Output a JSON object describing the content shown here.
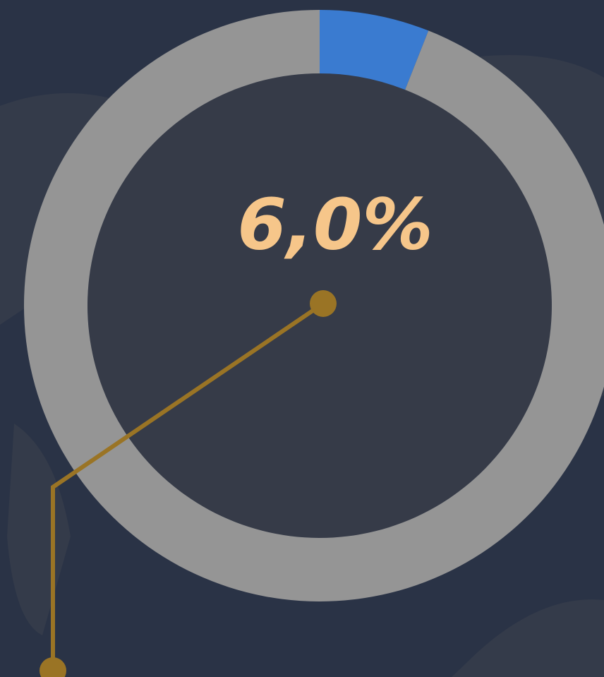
{
  "chart_data": {
    "type": "donut",
    "values": [
      6,
      94
    ],
    "value_labels": [
      "6,0%",
      null
    ],
    "colors": [
      "#3a7bd0",
      "#959595"
    ]
  }
}
